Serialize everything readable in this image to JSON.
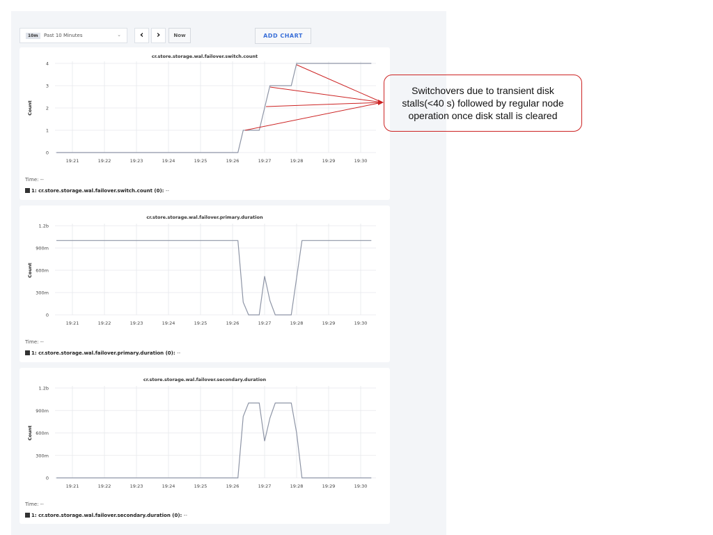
{
  "toolbar": {
    "range_badge": "10m",
    "range_label": "Past 10 Minutes",
    "prev_icon": "chevron-left-icon",
    "next_icon": "chevron-right-icon",
    "now_label": "Now",
    "add_chart_label": "ADD CHART"
  },
  "callout": {
    "text": "Switchovers due to transient disk stalls(<40 s) followed by regular node operation once disk stall is cleared",
    "color": "#cc2222"
  },
  "chart_data": [
    {
      "type": "line",
      "title": "cr.store.storage.wal.failover.switch.count",
      "ylabel": "Count",
      "ylim": [
        0,
        4
      ],
      "yticks": [
        0,
        1,
        2,
        3,
        4
      ],
      "ytick_labels": [
        "0",
        "1",
        "2",
        "3",
        "4"
      ],
      "xtick_labels": [
        "19:21",
        "19:22",
        "19:23",
        "19:24",
        "19:25",
        "19:26",
        "19:27",
        "19:28",
        "19:29",
        "19:30"
      ],
      "grid": true,
      "time_label": "Time:",
      "time_value": "--",
      "series": [
        {
          "name": "1: cr.store.storage.wal.failover.switch.count (0):",
          "legend_value": "--",
          "color": "#8e95a6",
          "x": [
            "19:20:30",
            "19:26:10",
            "19:26:20",
            "19:26:50",
            "19:27:10",
            "19:27:50",
            "19:28:00",
            "19:30:20"
          ],
          "y": [
            0,
            0,
            1,
            1,
            3,
            3,
            4,
            4
          ]
        }
      ]
    },
    {
      "type": "line",
      "title": "cr.store.storage.wal.failover.primary.duration",
      "ylabel": "Count",
      "ylim": [
        0,
        1.2
      ],
      "yticks": [
        0,
        0.3,
        0.6,
        0.9,
        1.2
      ],
      "ytick_labels": [
        "0",
        "300m",
        "600m",
        "900m",
        "1.2b"
      ],
      "xtick_labels": [
        "19:21",
        "19:22",
        "19:23",
        "19:24",
        "19:25",
        "19:26",
        "19:27",
        "19:28",
        "19:29",
        "19:30"
      ],
      "grid": true,
      "time_label": "Time:",
      "time_value": "--",
      "series": [
        {
          "name": "1: cr.store.storage.wal.failover.primary.duration (0):",
          "legend_value": "--",
          "color": "#8e95a6",
          "x": [
            "19:20:30",
            "19:26:10",
            "19:26:20",
            "19:26:30",
            "19:26:50",
            "19:27:00",
            "19:27:10",
            "19:27:20",
            "19:27:50",
            "19:28:00",
            "19:28:10",
            "19:30:20"
          ],
          "y": [
            1,
            1,
            0.17,
            0,
            0,
            0.52,
            0.19,
            0,
            0,
            0.5,
            1,
            1
          ]
        }
      ]
    },
    {
      "type": "line",
      "title": "cr.store.storage.wal.failover.secondary.duration",
      "ylabel": "Count",
      "ylim": [
        0,
        1.2
      ],
      "yticks": [
        0,
        0.3,
        0.6,
        0.9,
        1.2
      ],
      "ytick_labels": [
        "0",
        "300m",
        "600m",
        "900m",
        "1.2b"
      ],
      "xtick_labels": [
        "19:21",
        "19:22",
        "19:23",
        "19:24",
        "19:25",
        "19:26",
        "19:27",
        "19:28",
        "19:29",
        "19:30"
      ],
      "grid": true,
      "time_label": "Time:",
      "time_value": "--",
      "series": [
        {
          "name": "1: cr.store.storage.wal.failover.secondary.duration (0):",
          "legend_value": "--",
          "color": "#8e95a6",
          "x": [
            "19:20:30",
            "19:26:10",
            "19:26:20",
            "19:26:30",
            "19:26:50",
            "19:27:00",
            "19:27:10",
            "19:27:20",
            "19:27:50",
            "19:28:00",
            "19:28:10",
            "19:30:20"
          ],
          "y": [
            0,
            0,
            0.82,
            1,
            1,
            0.49,
            0.8,
            1,
            1,
            0.6,
            0,
            0
          ]
        }
      ]
    }
  ]
}
